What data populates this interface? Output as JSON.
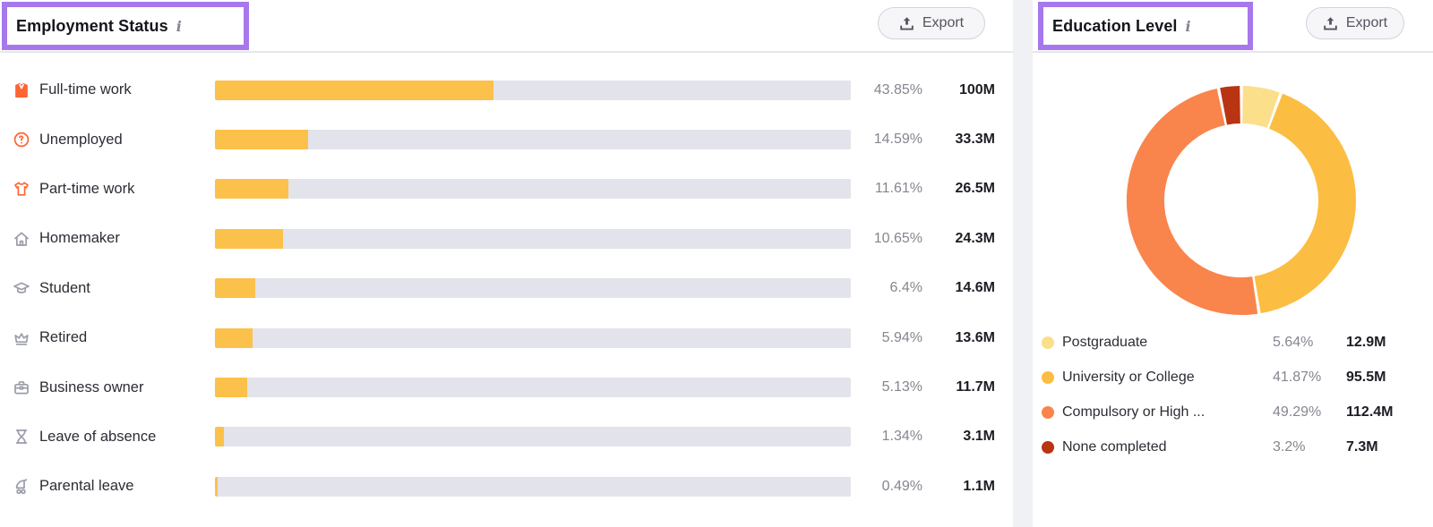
{
  "annotation_color": "#a678ec",
  "employment": {
    "title": "Employment Status",
    "export_label": "Export",
    "bar_color": "#fcc14a",
    "track_color": "#e3e3eb",
    "rows": [
      {
        "icon": "fulltime-work-icon",
        "icon_color": "#ff6433",
        "label": "Full-time work",
        "percent": "43.85%",
        "percent_value": 43.85,
        "value": "100M"
      },
      {
        "icon": "unemployed-icon",
        "icon_color": "#ff6433",
        "label": "Unemployed",
        "percent": "14.59%",
        "percent_value": 14.59,
        "value": "33.3M"
      },
      {
        "icon": "parttime-work-icon",
        "icon_color": "#ff6433",
        "label": "Part-time work",
        "percent": "11.61%",
        "percent_value": 11.61,
        "value": "26.5M"
      },
      {
        "icon": "homemaker-icon",
        "icon_color": "#9a9ca9",
        "label": "Homemaker",
        "percent": "10.65%",
        "percent_value": 10.65,
        "value": "24.3M"
      },
      {
        "icon": "student-icon",
        "icon_color": "#9a9ca9",
        "label": "Student",
        "percent": "6.4%",
        "percent_value": 6.4,
        "value": "14.6M"
      },
      {
        "icon": "retired-icon",
        "icon_color": "#9a9ca9",
        "label": "Retired",
        "percent": "5.94%",
        "percent_value": 5.94,
        "value": "13.6M"
      },
      {
        "icon": "business-owner-icon",
        "icon_color": "#9a9ca9",
        "label": "Business owner",
        "percent": "5.13%",
        "percent_value": 5.13,
        "value": "11.7M"
      },
      {
        "icon": "leave-of-absence-icon",
        "icon_color": "#9a9ca9",
        "label": "Leave of absence",
        "percent": "1.34%",
        "percent_value": 1.34,
        "value": "3.1M"
      },
      {
        "icon": "parental-leave-icon",
        "icon_color": "#9a9ca9",
        "label": "Parental leave",
        "percent": "0.49%",
        "percent_value": 0.49,
        "value": "1.1M"
      }
    ]
  },
  "education": {
    "title": "Education Level",
    "export_label": "Export",
    "slices": [
      {
        "label": "Postgraduate",
        "percent": "5.64%",
        "percent_value": 5.64,
        "value": "12.9M",
        "color": "#fbdf8b"
      },
      {
        "label": "University or College",
        "percent": "41.87%",
        "percent_value": 41.87,
        "value": "95.5M",
        "color": "#fbbe42"
      },
      {
        "label": "Compulsory or High ...",
        "percent": "49.29%",
        "percent_value": 49.29,
        "value": "112.4M",
        "color": "#f9854c"
      },
      {
        "label": "None completed",
        "percent": "3.2%",
        "percent_value": 3.2,
        "value": "7.3M",
        "color": "#b93413"
      }
    ]
  },
  "chart_data": [
    {
      "type": "bar",
      "orientation": "horizontal",
      "title": "Employment Status",
      "categories": [
        "Full-time work",
        "Unemployed",
        "Part-time work",
        "Homemaker",
        "Student",
        "Retired",
        "Business owner",
        "Leave of absence",
        "Parental leave"
      ],
      "values": [
        43.85,
        14.59,
        11.61,
        10.65,
        6.4,
        5.94,
        5.13,
        1.34,
        0.49
      ],
      "value_labels": [
        "43.85%",
        "14.59%",
        "11.61%",
        "10.65%",
        "6.4%",
        "5.94%",
        "5.13%",
        "1.34%",
        "0.49%"
      ],
      "absolute_labels": [
        "100M",
        "33.3M",
        "26.5M",
        "24.3M",
        "14.6M",
        "13.6M",
        "11.7M",
        "3.1M",
        "1.1M"
      ],
      "xlabel": "",
      "ylabel": "",
      "xlim": [
        0,
        100
      ],
      "grid": false,
      "bar_color": "#fcc14a"
    },
    {
      "type": "pie",
      "subtype": "donut",
      "title": "Education Level",
      "categories": [
        "Postgraduate",
        "University or College",
        "Compulsory or High ...",
        "None completed"
      ],
      "values": [
        5.64,
        41.87,
        49.29,
        3.2
      ],
      "value_labels": [
        "5.64%",
        "41.87%",
        "49.29%",
        "3.2%"
      ],
      "absolute_labels": [
        "12.9M",
        "95.5M",
        "112.4M",
        "7.3M"
      ],
      "colors": [
        "#fbdf8b",
        "#fbbe42",
        "#f9854c",
        "#b93413"
      ],
      "legend_position": "bottom-left",
      "start_angle_deg": 0,
      "direction": "clockwise"
    }
  ]
}
